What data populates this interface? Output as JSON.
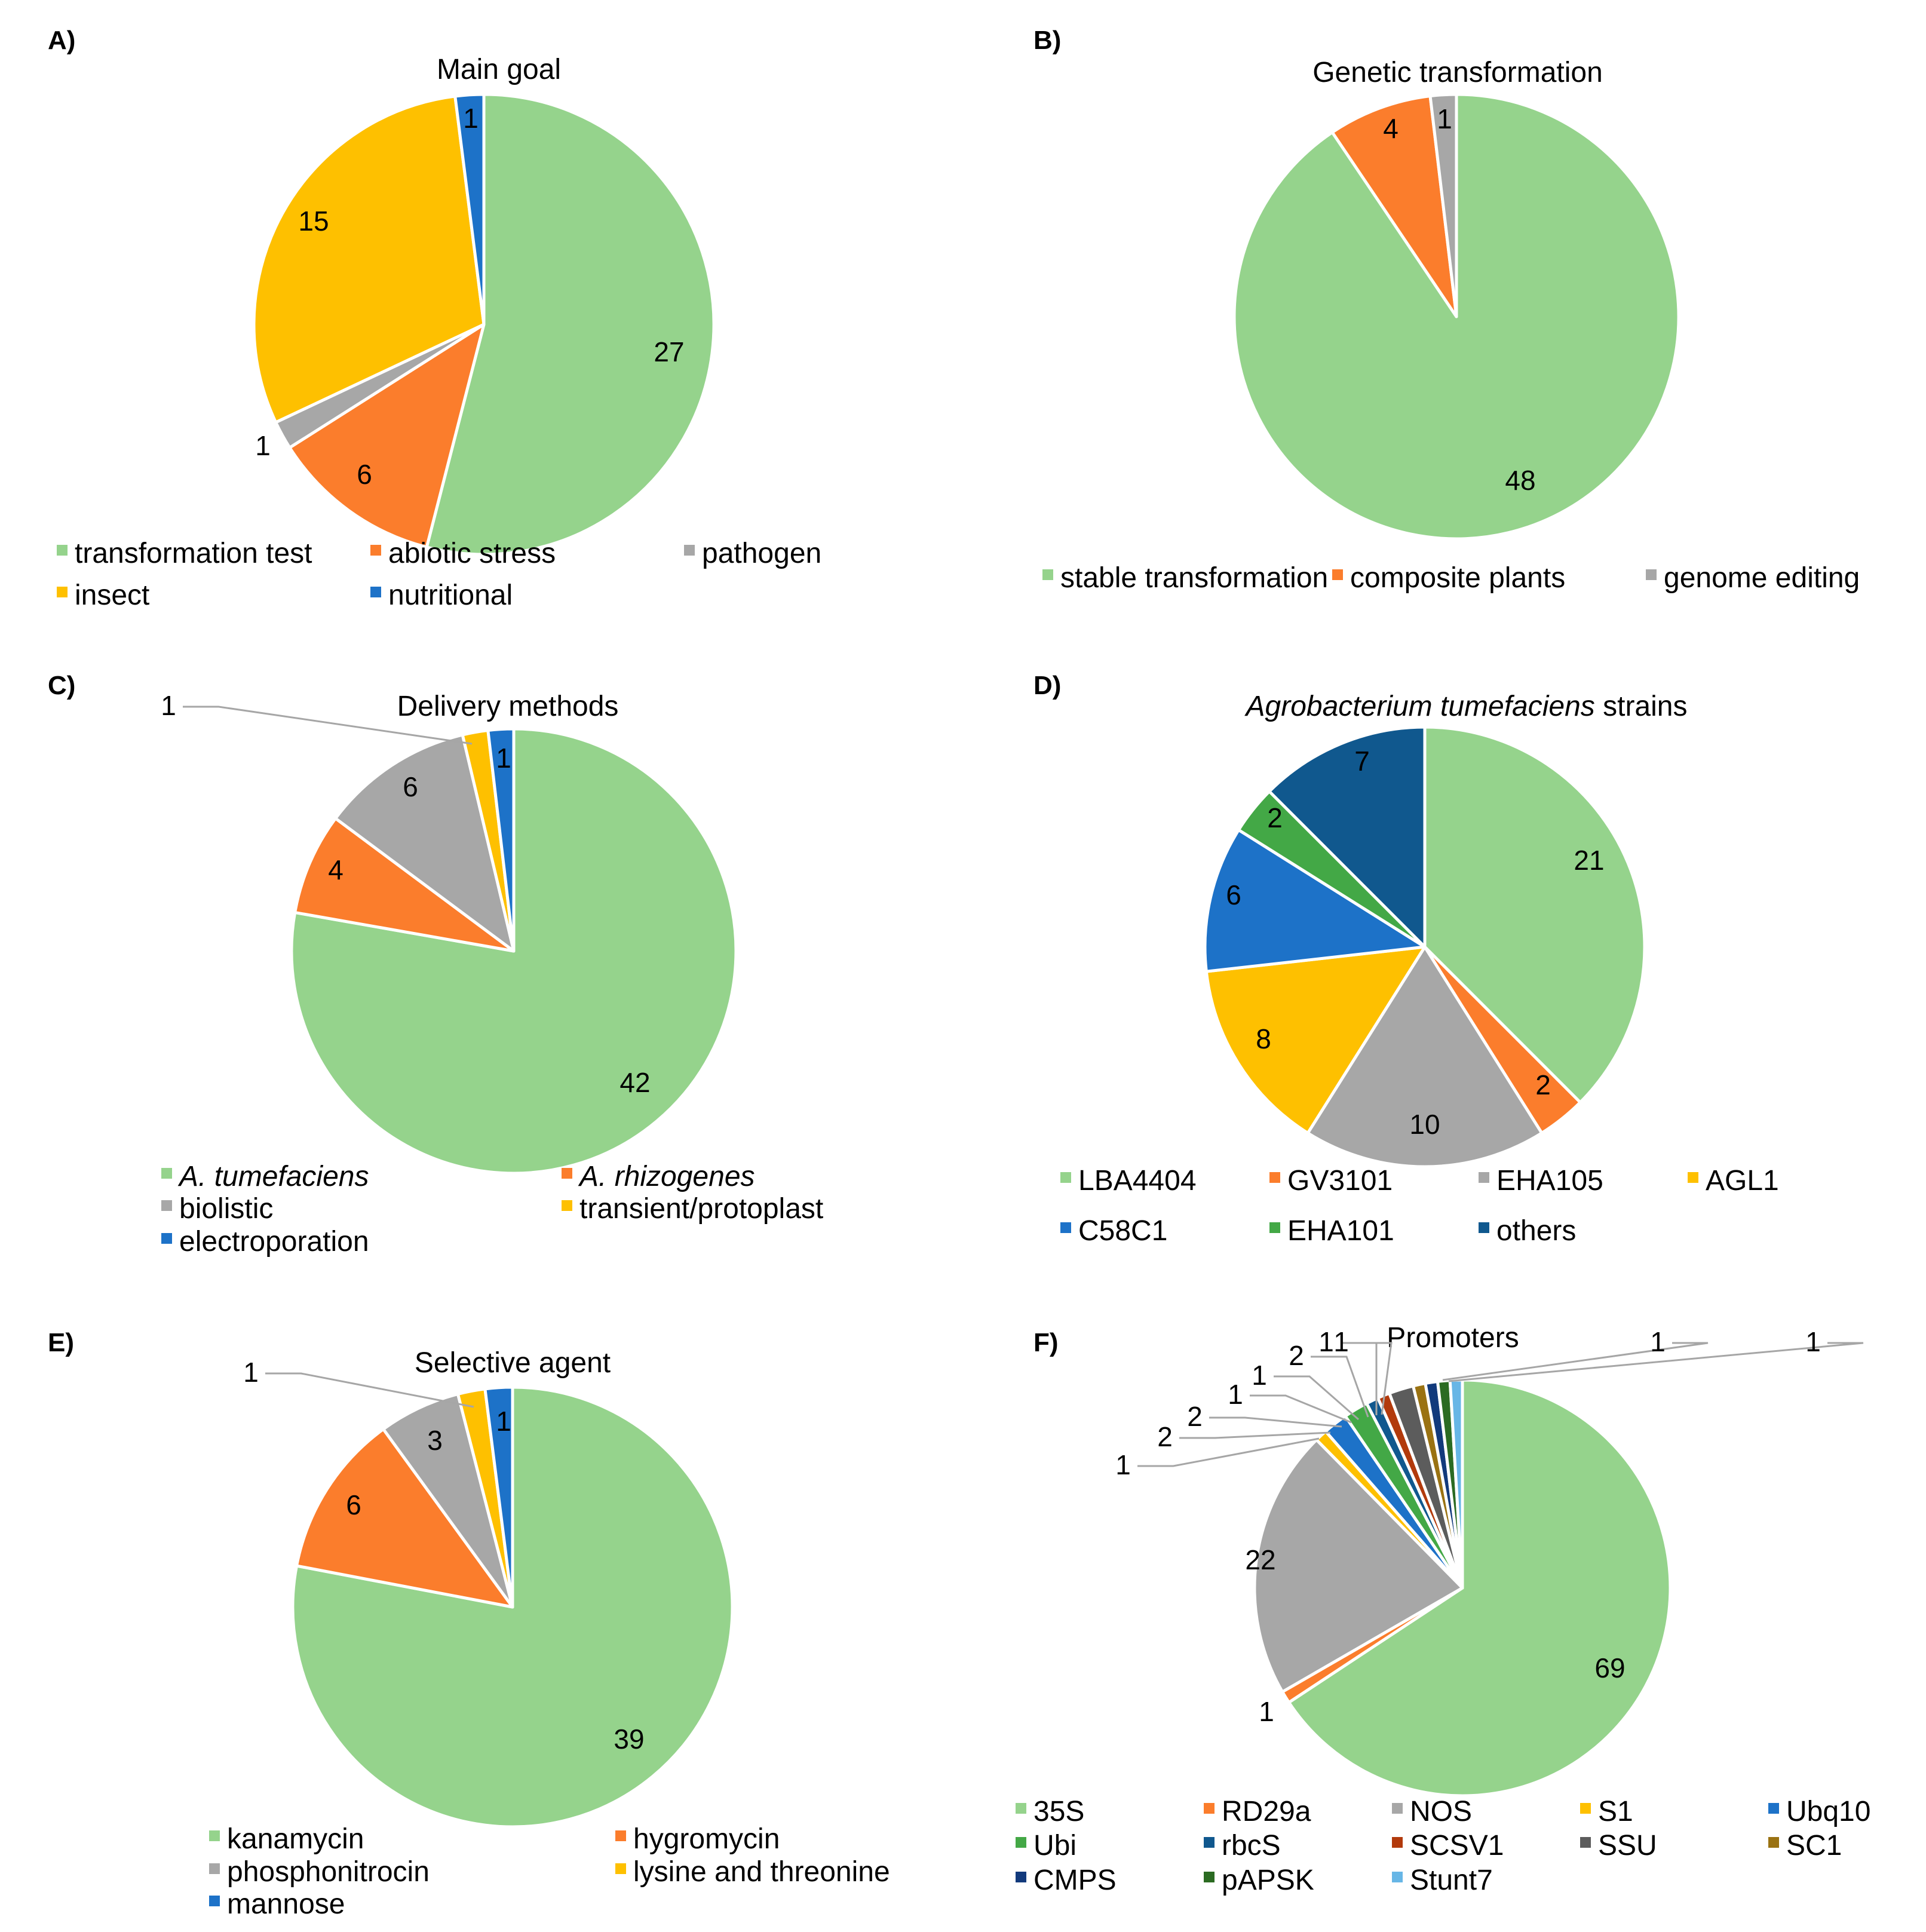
{
  "chart_data": [
    {
      "panel": "A)",
      "type": "pie",
      "title": "Main goal",
      "categories": [
        "transformation test",
        "abiotic stress",
        "pathogen",
        "insect",
        "nutritional"
      ],
      "values": [
        27,
        6,
        1,
        15,
        1
      ],
      "colors": [
        "#95d38c",
        "#fb7d2c",
        "#a7a7a7",
        "#fec000",
        "#1d72c8"
      ]
    },
    {
      "panel": "B)",
      "type": "pie",
      "title": "Genetic transformation",
      "categories": [
        "stable transformation",
        "composite plants",
        "genome editing"
      ],
      "values": [
        48,
        4,
        1
      ],
      "colors": [
        "#95d38c",
        "#fb7d2c",
        "#a7a7a7"
      ]
    },
    {
      "panel": "C)",
      "type": "pie",
      "title": "Delivery methods",
      "categories": [
        "A. tumefaciens",
        "A. rhizogenes",
        "biolistic",
        "transient/protoplast",
        "electroporation"
      ],
      "italic_categories": [
        "A. tumefaciens",
        "A. rhizogenes"
      ],
      "values": [
        42,
        4,
        6,
        1,
        1
      ],
      "colors": [
        "#95d38c",
        "#fb7d2c",
        "#a7a7a7",
        "#fec000",
        "#1d72c8"
      ]
    },
    {
      "panel": "D)",
      "type": "pie",
      "title_italic": "Agrobacterium tumefaciens",
      "title": "strains",
      "categories": [
        "LBA4404",
        "GV3101",
        "EHA105",
        "AGL1",
        "C58C1",
        "EHA101",
        "others"
      ],
      "values": [
        21,
        2,
        10,
        8,
        6,
        2,
        7
      ],
      "colors": [
        "#95d38c",
        "#fb7d2c",
        "#a7a7a7",
        "#fec000",
        "#1d72c8",
        "#43a846",
        "#10588e"
      ]
    },
    {
      "panel": "E)",
      "type": "pie",
      "title": "Selective agent",
      "categories": [
        "kanamycin",
        "hygromycin",
        "phosphonitrocin",
        "lysine and threonine",
        "mannose"
      ],
      "values": [
        39,
        6,
        3,
        1,
        1
      ],
      "colors": [
        "#95d38c",
        "#fb7d2c",
        "#a7a7a7",
        "#fec000",
        "#1d72c8"
      ]
    },
    {
      "panel": "F)",
      "type": "pie",
      "title": "Promoters",
      "categories": [
        "35S",
        "RD29a",
        "NOS",
        "S1",
        "Ubq10",
        "Ubi",
        "rbcS",
        "SCSV1",
        "SSU",
        "SC1",
        "CMPS",
        "pAPSK",
        "Stunt7"
      ],
      "values": [
        69,
        1,
        22,
        1,
        2,
        2,
        1,
        1,
        2,
        1,
        1,
        1,
        1
      ],
      "colors": [
        "#95d38c",
        "#fb7d2c",
        "#a7a7a7",
        "#fec000",
        "#1d72c8",
        "#43a846",
        "#10588e",
        "#b23a0c",
        "#5c5c5c",
        "#9a7212",
        "#123a7c",
        "#2b6b22",
        "#67b6e6"
      ]
    }
  ]
}
